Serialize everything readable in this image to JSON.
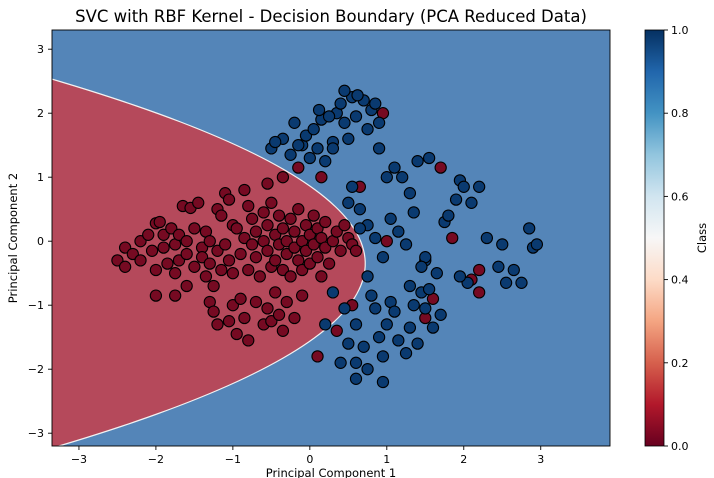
{
  "chart_data": {
    "type": "scatter",
    "title": "SVC with RBF Kernel - Decision Boundary (PCA Reduced Data)",
    "xlabel": "Principal Component 1",
    "ylabel": "Principal Component 2",
    "xlim": [
      -3.35,
      3.9
    ],
    "ylim": [
      -3.2,
      3.3
    ],
    "xticks": [
      -3,
      -2,
      -1,
      0,
      1,
      2,
      3
    ],
    "yticks": [
      -3,
      -2,
      -1,
      0,
      1,
      2,
      3
    ],
    "grid": false,
    "background_region_color": "#5485b8",
    "decision_region_color": "#b5495b",
    "point_colors": {
      "class_0": "#760a22",
      "class_1": "#0a3a70"
    },
    "colorbar": {
      "label": "Class",
      "ticks": [
        "0.0",
        "0.2",
        "0.4",
        "0.6",
        "0.8",
        "1.0"
      ],
      "colormap": "RdBu"
    },
    "decision_boundary": {
      "description_type": "parabola",
      "vertex": [
        0.72,
        -0.35
      ],
      "coefficient": 0.49
    },
    "series": [
      {
        "class": 0,
        "points": [
          [
            -2.5,
            -0.3
          ],
          [
            -2.4,
            -0.1
          ],
          [
            -2.4,
            -0.4
          ],
          [
            -2.3,
            -0.2
          ],
          [
            -2.2,
            0.0
          ],
          [
            -2.2,
            -0.3
          ],
          [
            -2.1,
            0.1
          ],
          [
            -2.05,
            -0.15
          ],
          [
            -2.0,
            0.28
          ],
          [
            -2.0,
            -0.45
          ],
          [
            -1.95,
            0.3
          ],
          [
            -1.9,
            -0.1
          ],
          [
            -1.9,
            0.1
          ],
          [
            -1.85,
            -0.35
          ],
          [
            -1.8,
            0.2
          ],
          [
            -1.75,
            -0.05
          ],
          [
            -1.75,
            -0.5
          ],
          [
            -1.7,
            0.1
          ],
          [
            -1.7,
            -0.3
          ],
          [
            -1.65,
            0.55
          ],
          [
            -1.6,
            0.0
          ],
          [
            -1.6,
            -0.2
          ],
          [
            -1.55,
            0.52
          ],
          [
            -1.5,
            -0.4
          ],
          [
            -1.5,
            0.2
          ],
          [
            -1.45,
            0.6
          ],
          [
            -1.4,
            -0.1
          ],
          [
            -1.4,
            -0.25
          ],
          [
            -1.35,
            0.15
          ],
          [
            -1.35,
            -0.55
          ],
          [
            -1.3,
            0.0
          ],
          [
            -1.3,
            -0.35
          ],
          [
            -1.25,
            -0.7
          ],
          [
            -1.2,
            0.5
          ],
          [
            -1.2,
            -0.15
          ],
          [
            -1.15,
            0.4
          ],
          [
            -1.15,
            -0.45
          ],
          [
            -1.1,
            0.75
          ],
          [
            -1.1,
            -0.05
          ],
          [
            -1.05,
            0.65
          ],
          [
            -1.05,
            -0.3
          ],
          [
            -1.0,
            0.25
          ],
          [
            -1.0,
            -0.5
          ],
          [
            -0.95,
            0.2
          ],
          [
            -0.9,
            -0.2
          ],
          [
            -0.85,
            0.8
          ],
          [
            -0.85,
            0.05
          ],
          [
            -0.8,
            -0.45
          ],
          [
            -0.8,
            0.55
          ],
          [
            -0.75,
            0.35
          ],
          [
            -0.75,
            -0.05
          ],
          [
            -0.7,
            0.15
          ],
          [
            -0.7,
            -0.25
          ],
          [
            -0.65,
            -0.55
          ],
          [
            -0.6,
            0.45
          ],
          [
            -0.6,
            0.0
          ],
          [
            -0.55,
            -0.15
          ],
          [
            -0.55,
            0.25
          ],
          [
            -0.5,
            -0.4
          ],
          [
            -0.5,
            0.6
          ],
          [
            -0.45,
            0.1
          ],
          [
            -0.45,
            -0.3
          ],
          [
            -0.4,
            -0.05
          ],
          [
            -0.4,
            0.4
          ],
          [
            -0.35,
            -0.45
          ],
          [
            -0.35,
            0.2
          ],
          [
            -0.3,
            0.0
          ],
          [
            -0.3,
            -0.2
          ],
          [
            -0.25,
            0.35
          ],
          [
            -0.25,
            -0.55
          ],
          [
            -0.2,
            -0.1
          ],
          [
            -0.2,
            0.15
          ],
          [
            -0.15,
            0.5
          ],
          [
            -0.15,
            -0.3
          ],
          [
            -0.1,
            0.0
          ],
          [
            -0.1,
            -0.45
          ],
          [
            -0.05,
            0.25
          ],
          [
            -0.05,
            -0.15
          ],
          [
            0.0,
            0.1
          ],
          [
            0.0,
            -0.35
          ],
          [
            0.05,
            0.4
          ],
          [
            0.05,
            -0.05
          ],
          [
            0.1,
            -0.25
          ],
          [
            0.1,
            0.2
          ],
          [
            0.15,
            -0.55
          ],
          [
            0.15,
            0.05
          ],
          [
            0.2,
            -0.1
          ],
          [
            0.2,
            0.3
          ],
          [
            0.25,
            -0.35
          ],
          [
            0.3,
            0.0
          ],
          [
            0.35,
            0.15
          ],
          [
            0.4,
            -0.15
          ],
          [
            0.45,
            0.25
          ],
          [
            0.5,
            0.05
          ],
          [
            0.55,
            -0.05
          ],
          [
            0.6,
            -0.15
          ],
          [
            -2.0,
            -0.85
          ],
          [
            -1.75,
            -0.85
          ],
          [
            -1.6,
            -0.7
          ],
          [
            -1.3,
            -0.95
          ],
          [
            -1.25,
            -1.1
          ],
          [
            -1.2,
            -1.3
          ],
          [
            -1.05,
            -1.25
          ],
          [
            -1.0,
            -1.0
          ],
          [
            -0.95,
            -1.45
          ],
          [
            -0.9,
            -0.9
          ],
          [
            -0.85,
            -1.2
          ],
          [
            -0.8,
            -1.55
          ],
          [
            -0.7,
            -0.95
          ],
          [
            -0.6,
            -1.3
          ],
          [
            -0.55,
            -1.05
          ],
          [
            -0.5,
            -1.25
          ],
          [
            -0.45,
            -0.8
          ],
          [
            -0.4,
            -1.15
          ],
          [
            -0.35,
            -1.4
          ],
          [
            -0.3,
            -0.95
          ],
          [
            -0.2,
            -1.2
          ],
          [
            -0.1,
            -0.85
          ],
          [
            -0.55,
            0.9
          ],
          [
            -0.35,
            1.0
          ],
          [
            -0.15,
            1.15
          ],
          [
            0.15,
            1.0
          ],
          [
            0.1,
            -1.8
          ],
          [
            0.35,
            -1.4
          ],
          [
            0.55,
            -1.0
          ],
          [
            0.65,
            0.85
          ],
          [
            1.0,
            0.0
          ],
          [
            0.95,
            2.0
          ],
          [
            1.5,
            -1.2
          ],
          [
            1.6,
            -0.9
          ],
          [
            1.7,
            1.15
          ],
          [
            1.85,
            0.05
          ],
          [
            2.1,
            -0.6
          ],
          [
            2.2,
            -0.8
          ],
          [
            2.2,
            -0.45
          ]
        ]
      },
      {
        "class": 1,
        "points": [
          [
            -0.5,
            1.45
          ],
          [
            -0.35,
            1.6
          ],
          [
            -0.25,
            1.35
          ],
          [
            -0.2,
            1.85
          ],
          [
            -0.1,
            1.5
          ],
          [
            -0.05,
            1.65
          ],
          [
            0.0,
            1.3
          ],
          [
            0.05,
            1.75
          ],
          [
            0.1,
            1.45
          ],
          [
            0.15,
            1.9
          ],
          [
            0.2,
            1.25
          ],
          [
            0.3,
            1.55
          ],
          [
            0.35,
            2.0
          ],
          [
            0.4,
            2.15
          ],
          [
            0.45,
            1.85
          ],
          [
            0.5,
            1.6
          ],
          [
            0.55,
            2.25
          ],
          [
            0.6,
            1.95
          ],
          [
            0.7,
            2.2
          ],
          [
            0.75,
            1.75
          ],
          [
            0.8,
            2.05
          ],
          [
            0.85,
            2.15
          ],
          [
            0.9,
            1.85
          ],
          [
            0.25,
            1.95
          ],
          [
            0.45,
            2.35
          ],
          [
            0.62,
            2.28
          ],
          [
            0.2,
            -1.3
          ],
          [
            0.3,
            -0.8
          ],
          [
            0.45,
            -1.05
          ],
          [
            0.5,
            -1.6
          ],
          [
            0.6,
            -1.3
          ],
          [
            0.7,
            -1.65
          ],
          [
            0.75,
            -0.55
          ],
          [
            0.8,
            -0.85
          ],
          [
            0.85,
            -1.05
          ],
          [
            0.9,
            -1.5
          ],
          [
            0.95,
            -1.8
          ],
          [
            1.0,
            -1.3
          ],
          [
            1.05,
            -0.95
          ],
          [
            1.1,
            -1.1
          ],
          [
            1.15,
            -1.55
          ],
          [
            1.25,
            -1.75
          ],
          [
            1.3,
            -1.35
          ],
          [
            1.35,
            -1.0
          ],
          [
            1.4,
            -1.6
          ],
          [
            1.45,
            -0.8
          ],
          [
            1.5,
            -1.05
          ],
          [
            0.9,
            1.45
          ],
          [
            1.1,
            1.15
          ],
          [
            1.2,
            1.0
          ],
          [
            1.3,
            0.75
          ],
          [
            1.4,
            1.25
          ],
          [
            1.55,
            1.3
          ],
          [
            0.55,
            0.85
          ],
          [
            0.65,
            0.5
          ],
          [
            0.75,
            0.25
          ],
          [
            0.85,
            0.05
          ],
          [
            0.95,
            -0.25
          ],
          [
            1.05,
            0.35
          ],
          [
            1.15,
            0.15
          ],
          [
            1.25,
            -0.05
          ],
          [
            1.35,
            0.45
          ],
          [
            1.5,
            -0.3
          ],
          [
            1.65,
            -0.5
          ],
          [
            1.75,
            0.3
          ],
          [
            1.8,
            0.4
          ],
          [
            1.9,
            0.65
          ],
          [
            1.95,
            0.95
          ],
          [
            2.0,
            0.85
          ],
          [
            2.1,
            0.6
          ],
          [
            2.2,
            0.85
          ],
          [
            2.3,
            0.05
          ],
          [
            2.45,
            -0.4
          ],
          [
            2.5,
            -0.05
          ],
          [
            2.55,
            -0.65
          ],
          [
            2.65,
            -0.45
          ],
          [
            2.75,
            -0.65
          ],
          [
            2.85,
            0.2
          ],
          [
            2.9,
            -0.1
          ],
          [
            2.95,
            -0.05
          ],
          [
            2.05,
            -0.65
          ],
          [
            1.95,
            -0.55
          ],
          [
            1.6,
            -1.35
          ],
          [
            1.55,
            -0.75
          ],
          [
            1.3,
            -0.7
          ],
          [
            1.5,
            -0.25
          ],
          [
            1.45,
            -0.4
          ],
          [
            1.7,
            -1.15
          ],
          [
            0.95,
            -2.2
          ],
          [
            0.75,
            -2.0
          ],
          [
            0.6,
            -1.9
          ],
          [
            0.4,
            -1.9
          ],
          [
            0.6,
            -2.15
          ],
          [
            1.0,
            1.0
          ],
          [
            0.5,
            0.6
          ],
          [
            0.65,
            0.2
          ],
          [
            0.3,
            1.45
          ],
          [
            -0.45,
            1.55
          ],
          [
            -0.15,
            1.5
          ],
          [
            0.12,
            2.05
          ]
        ]
      }
    ]
  }
}
